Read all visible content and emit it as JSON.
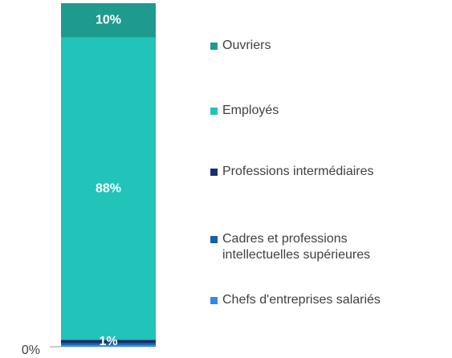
{
  "chart_data": {
    "type": "stacked_bar",
    "categories": [
      null
    ],
    "series": [
      {
        "name": "Chefs d'entreprises salariés",
        "color": "#2e8ae6",
        "values": [
          0.5
        ],
        "value_labels": [
          null
        ]
      },
      {
        "name": "Cadres et professions intellectuelles supérieures",
        "color": "#1560b0",
        "values": [
          0.5
        ],
        "value_labels": [
          null
        ]
      },
      {
        "name": "Professions intermédiaires",
        "color": "#14306e",
        "values": [
          1
        ],
        "value_labels": [
          "1%"
        ]
      },
      {
        "name": "Employés",
        "color": "#22c3b9",
        "values": [
          88
        ],
        "value_labels": [
          "88%"
        ]
      },
      {
        "name": "Ouvriers",
        "color": "#1f9a8e",
        "values": [
          10
        ],
        "value_labels": [
          "10%"
        ]
      }
    ],
    "ylim": [
      0,
      100
    ],
    "yticks": [
      {
        "value": 0,
        "label": "0%"
      }
    ],
    "legend": "right"
  }
}
